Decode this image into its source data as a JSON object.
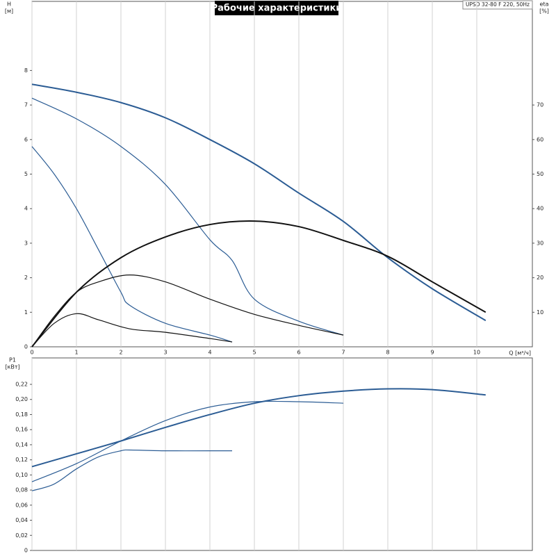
{
  "chart_data": [
    {
      "type": "line",
      "title": "Рабочие характеристики",
      "model": "UPSD 32-80 F 220, 50Hz",
      "ylabel": "H",
      "ylabel_unit": "[м]",
      "y2label": "eta",
      "y2label_unit": "[%]",
      "xlabel": "Q [м³/ч]",
      "xlim": [
        0,
        11.25
      ],
      "xticks": [
        0,
        1,
        2,
        3,
        4,
        5,
        6,
        7,
        8,
        9,
        10
      ],
      "ylim": [
        0,
        10
      ],
      "yticks": [
        0,
        1,
        2,
        3,
        4,
        5,
        6,
        7,
        8
      ],
      "y2lim": [
        0,
        100
      ],
      "y2ticks": [
        10,
        20,
        30,
        40,
        50,
        60,
        70
      ],
      "grid": "x",
      "series": [
        {
          "color": "#2b5c94",
          "x": [
            0,
            1,
            2,
            3,
            4,
            5,
            6,
            7,
            8,
            9,
            10.2
          ],
          "values": [
            7.6,
            7.37,
            7.07,
            6.63,
            6.0,
            5.3,
            4.45,
            3.63,
            2.58,
            1.68,
            0.76
          ]
        },
        {
          "color": "#2b5c94",
          "x": [
            0,
            1,
            2,
            3,
            4,
            4.5,
            5,
            6,
            7
          ],
          "values": [
            7.2,
            6.6,
            5.8,
            4.7,
            3.1,
            2.5,
            1.38,
            0.74,
            0.34
          ]
        },
        {
          "color": "#2b5c94",
          "x": [
            0,
            0.5,
            1,
            1.5,
            2,
            2.2,
            3,
            4,
            4.5
          ],
          "values": [
            5.8,
            5.0,
            4.0,
            2.8,
            1.58,
            1.2,
            0.68,
            0.34,
            0.14
          ]
        },
        {
          "color": "#111111",
          "axis": "y2",
          "x": [
            0,
            1,
            2,
            3,
            4,
            5,
            6,
            7,
            8,
            9,
            10.2
          ],
          "values": [
            0,
            15.8,
            25.8,
            31.8,
            35.4,
            36.4,
            34.8,
            30.8,
            26.2,
            18.8,
            10
          ]
        },
        {
          "color": "#111111",
          "axis": "y2",
          "x": [
            0,
            0.5,
            1,
            1.5,
            2.2,
            3,
            4,
            5,
            6,
            7
          ],
          "values": [
            0,
            8.8,
            15.8,
            18.8,
            20.8,
            18.8,
            13.8,
            9.4,
            6.2,
            3.4
          ]
        },
        {
          "color": "#111111",
          "axis": "y2",
          "x": [
            0,
            0.5,
            1,
            1.5,
            2.2,
            3,
            4,
            4.5
          ],
          "values": [
            0,
            6.8,
            9.6,
            7.8,
            5.2,
            4.2,
            2.4,
            1.4
          ]
        }
      ]
    },
    {
      "type": "line",
      "ylabel": "P1",
      "ylabel_unit": "[кВт]",
      "ylim": [
        0,
        0.255
      ],
      "yticks": [
        0,
        {
          "value": 0.02,
          "label": "0,02"
        },
        {
          "value": 0.04,
          "label": "0,04"
        },
        {
          "value": 0.06,
          "label": "0,06"
        },
        {
          "value": 0.08,
          "label": "0,08"
        },
        {
          "value": 0.1,
          "label": "0,10"
        },
        {
          "value": 0.12,
          "label": "0,12"
        },
        {
          "value": 0.14,
          "label": "0,14"
        },
        {
          "value": 0.16,
          "label": "0,16"
        },
        {
          "value": 0.18,
          "label": "0,18"
        },
        {
          "value": 0.2,
          "label": "0,20"
        },
        {
          "value": 0.22,
          "label": "0,22"
        }
      ],
      "series": [
        {
          "color": "#2b5c94",
          "x": [
            0,
            1,
            2,
            3,
            4,
            5,
            6,
            7,
            8,
            9,
            10.2
          ],
          "values": [
            0.111,
            0.128,
            0.145,
            0.163,
            0.18,
            0.195,
            0.205,
            0.211,
            0.214,
            0.213,
            0.206
          ]
        },
        {
          "color": "#2b5c94",
          "x": [
            0,
            1,
            2,
            3,
            4,
            5,
            6,
            7
          ],
          "values": [
            0.091,
            0.115,
            0.145,
            0.172,
            0.19,
            0.197,
            0.197,
            0.195
          ]
        },
        {
          "color": "#2b5c94",
          "x": [
            0,
            0.5,
            1,
            1.5,
            2,
            2.2,
            3,
            4,
            4.5
          ],
          "values": [
            0.079,
            0.088,
            0.108,
            0.124,
            0.132,
            0.133,
            0.132,
            0.132,
            0.132
          ]
        }
      ]
    }
  ]
}
